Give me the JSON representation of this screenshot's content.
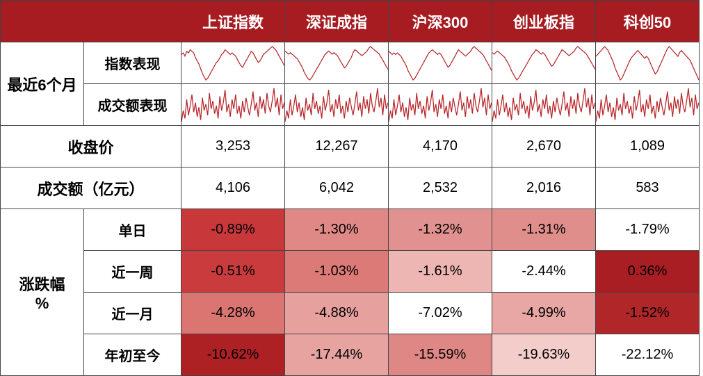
{
  "header": {
    "indices": [
      "上证指数",
      "深证成指",
      "沪深300",
      "创业板指",
      "科创50"
    ]
  },
  "rows": {
    "recent6m_label": "最近6个月",
    "index_perf_label": "指数表现",
    "turnover_perf_label": "成交额表现",
    "close_label": "收盘价",
    "turnover_label": "成交额（亿元）",
    "pct_label": "涨跌幅\n%",
    "periods": [
      "单日",
      "近一周",
      "近一月",
      "年初至今"
    ]
  },
  "close": [
    "3,253",
    "12,267",
    "4,170",
    "2,670",
    "1,089"
  ],
  "turnover": [
    "4,106",
    "6,042",
    "2,532",
    "2,016",
    "583"
  ],
  "pct": [
    [
      {
        "v": "-0.89%",
        "bg": "#c8383a",
        "fg": "#000000"
      },
      {
        "v": "-1.30%",
        "bg": "#e08886",
        "fg": "#000000"
      },
      {
        "v": "-1.32%",
        "bg": "#e19290",
        "fg": "#000000"
      },
      {
        "v": "-1.31%",
        "bg": "#e08e8c",
        "fg": "#000000"
      },
      {
        "v": "-1.79%",
        "bg": "#ffffff",
        "fg": "#000000"
      }
    ],
    [
      {
        "v": "-0.51%",
        "bg": "#ca3b3d",
        "fg": "#000000"
      },
      {
        "v": "-1.03%",
        "bg": "#dc7a77",
        "fg": "#000000"
      },
      {
        "v": "-1.61%",
        "bg": "#eeb6b3",
        "fg": "#000000"
      },
      {
        "v": "-2.44%",
        "bg": "#ffffff",
        "fg": "#000000"
      },
      {
        "v": "0.36%",
        "bg": "#a91e22",
        "fg": "#000000"
      }
    ],
    [
      {
        "v": "-4.28%",
        "bg": "#da7572",
        "fg": "#000000"
      },
      {
        "v": "-4.88%",
        "bg": "#e6a19e",
        "fg": "#000000"
      },
      {
        "v": "-7.02%",
        "bg": "#ffffff",
        "fg": "#000000"
      },
      {
        "v": "-4.99%",
        "bg": "#e8a7a4",
        "fg": "#000000"
      },
      {
        "v": "-1.52%",
        "bg": "#b12629",
        "fg": "#000000"
      }
    ],
    [
      {
        "v": "-10.62%",
        "bg": "#ad2125",
        "fg": "#000000"
      },
      {
        "v": "-17.44%",
        "bg": "#e6a39f",
        "fg": "#000000"
      },
      {
        "v": "-15.59%",
        "bg": "#df8784",
        "fg": "#000000"
      },
      {
        "v": "-19.63%",
        "bg": "#f3cdca",
        "fg": "#000000"
      },
      {
        "v": "-22.12%",
        "bg": "#ffffff",
        "fg": "#000000"
      }
    ]
  ],
  "sparklines": {
    "index": [
      [
        22,
        23,
        21,
        24,
        23,
        25,
        24,
        23,
        20,
        18,
        16,
        13,
        10,
        8,
        6,
        7,
        9,
        11,
        13,
        15,
        17,
        18,
        20,
        22,
        23,
        25,
        24,
        23,
        22,
        23,
        22,
        21,
        19,
        17,
        15,
        14,
        16,
        18,
        20,
        22,
        24,
        23,
        21,
        19,
        17,
        18,
        20,
        22,
        23,
        24,
        25,
        26,
        27,
        26,
        25,
        23,
        21,
        19,
        17,
        15
      ],
      [
        25,
        24,
        23,
        24,
        23,
        22,
        21,
        20,
        18,
        16,
        14,
        11,
        9,
        7,
        6,
        7,
        9,
        11,
        13,
        15,
        17,
        19,
        21,
        23,
        24,
        25,
        24,
        23,
        24,
        23,
        22,
        20,
        18,
        16,
        14,
        15,
        17,
        19,
        21,
        24,
        26,
        25,
        24,
        23,
        22,
        23,
        24,
        25,
        27,
        28,
        27,
        26,
        25,
        24,
        23,
        21,
        19,
        17,
        15,
        13
      ],
      [
        24,
        23,
        22,
        23,
        22,
        23,
        22,
        21,
        19,
        17,
        15,
        12,
        10,
        8,
        6,
        7,
        9,
        11,
        13,
        15,
        17,
        19,
        21,
        23,
        24,
        25,
        24,
        23,
        22,
        23,
        22,
        20,
        18,
        16,
        14,
        15,
        17,
        19,
        21,
        23,
        25,
        24,
        23,
        22,
        21,
        22,
        23,
        24,
        26,
        27,
        26,
        25,
        24,
        23,
        22,
        20,
        18,
        16,
        14,
        12
      ],
      [
        25,
        24,
        25,
        26,
        25,
        24,
        23,
        22,
        20,
        18,
        16,
        13,
        11,
        9,
        7,
        8,
        10,
        12,
        14,
        16,
        18,
        20,
        22,
        24,
        25,
        27,
        26,
        25,
        24,
        25,
        24,
        22,
        20,
        18,
        16,
        17,
        19,
        21,
        23,
        25,
        27,
        26,
        25,
        24,
        23,
        24,
        25,
        26,
        28,
        29,
        28,
        27,
        26,
        25,
        24,
        22,
        20,
        18,
        16,
        14
      ],
      [
        22,
        23,
        24,
        25,
        26,
        27,
        26,
        25,
        23,
        21,
        19,
        16,
        14,
        12,
        10,
        11,
        13,
        15,
        17,
        19,
        21,
        22,
        23,
        24,
        25,
        24,
        23,
        22,
        21,
        22,
        21,
        19,
        17,
        15,
        13,
        14,
        16,
        18,
        20,
        22,
        24,
        26,
        27,
        26,
        25,
        24,
        23,
        22,
        24,
        25,
        24,
        23,
        22,
        21,
        20,
        18,
        16,
        14,
        12,
        10
      ]
    ],
    "turnover": [
      [
        8,
        15,
        10,
        22,
        12,
        18,
        25,
        14,
        20,
        11,
        17,
        9,
        23,
        15,
        19,
        12,
        26,
        16,
        21,
        13,
        18,
        10,
        24,
        15,
        20,
        28,
        14,
        19,
        11,
        22,
        16,
        25,
        13,
        18,
        10,
        21,
        14,
        23,
        17,
        12,
        19,
        27,
        15,
        20,
        11,
        24,
        16,
        22,
        13,
        26,
        18,
        14,
        21,
        29,
        17,
        23,
        12,
        25,
        16,
        20
      ],
      [
        10,
        17,
        12,
        24,
        14,
        20,
        27,
        16,
        22,
        13,
        19,
        11,
        25,
        17,
        21,
        14,
        28,
        18,
        23,
        15,
        20,
        12,
        26,
        17,
        22,
        30,
        16,
        21,
        13,
        24,
        18,
        27,
        15,
        20,
        12,
        23,
        16,
        25,
        19,
        14,
        21,
        29,
        17,
        22,
        13,
        26,
        18,
        24,
        15,
        28,
        20,
        16,
        23,
        31,
        19,
        25,
        14,
        27,
        18,
        22
      ],
      [
        9,
        16,
        11,
        23,
        13,
        19,
        26,
        15,
        21,
        12,
        18,
        10,
        24,
        16,
        20,
        13,
        27,
        17,
        22,
        14,
        19,
        11,
        25,
        16,
        21,
        29,
        15,
        20,
        12,
        23,
        17,
        26,
        14,
        19,
        11,
        22,
        15,
        24,
        18,
        13,
        20,
        28,
        16,
        21,
        12,
        25,
        17,
        23,
        14,
        27,
        19,
        15,
        22,
        30,
        18,
        24,
        13,
        26,
        17,
        21
      ],
      [
        11,
        18,
        13,
        25,
        15,
        21,
        28,
        17,
        23,
        14,
        20,
        12,
        26,
        18,
        22,
        15,
        29,
        19,
        24,
        16,
        21,
        13,
        27,
        18,
        23,
        31,
        17,
        22,
        14,
        25,
        19,
        28,
        16,
        21,
        13,
        24,
        17,
        26,
        20,
        15,
        22,
        30,
        18,
        23,
        14,
        27,
        19,
        25,
        16,
        29,
        21,
        17,
        24,
        32,
        20,
        26,
        15,
        28,
        19,
        23
      ],
      [
        7,
        14,
        9,
        21,
        11,
        17,
        24,
        13,
        19,
        10,
        16,
        8,
        22,
        14,
        18,
        11,
        25,
        15,
        20,
        12,
        17,
        9,
        23,
        14,
        19,
        27,
        13,
        18,
        10,
        21,
        15,
        24,
        12,
        17,
        9,
        20,
        13,
        22,
        16,
        11,
        18,
        26,
        14,
        19,
        10,
        23,
        15,
        21,
        12,
        25,
        17,
        13,
        20,
        28,
        16,
        22,
        11,
        24,
        15,
        19
      ]
    ],
    "height_scale": {
      "index": 40,
      "turnover": 40
    }
  },
  "style": {
    "header_bg": "#a61c21",
    "header_fg": "#ffffff",
    "border_color": "#444444",
    "spark_stroke": "#b8262b",
    "font_family": "Microsoft YaHei"
  }
}
